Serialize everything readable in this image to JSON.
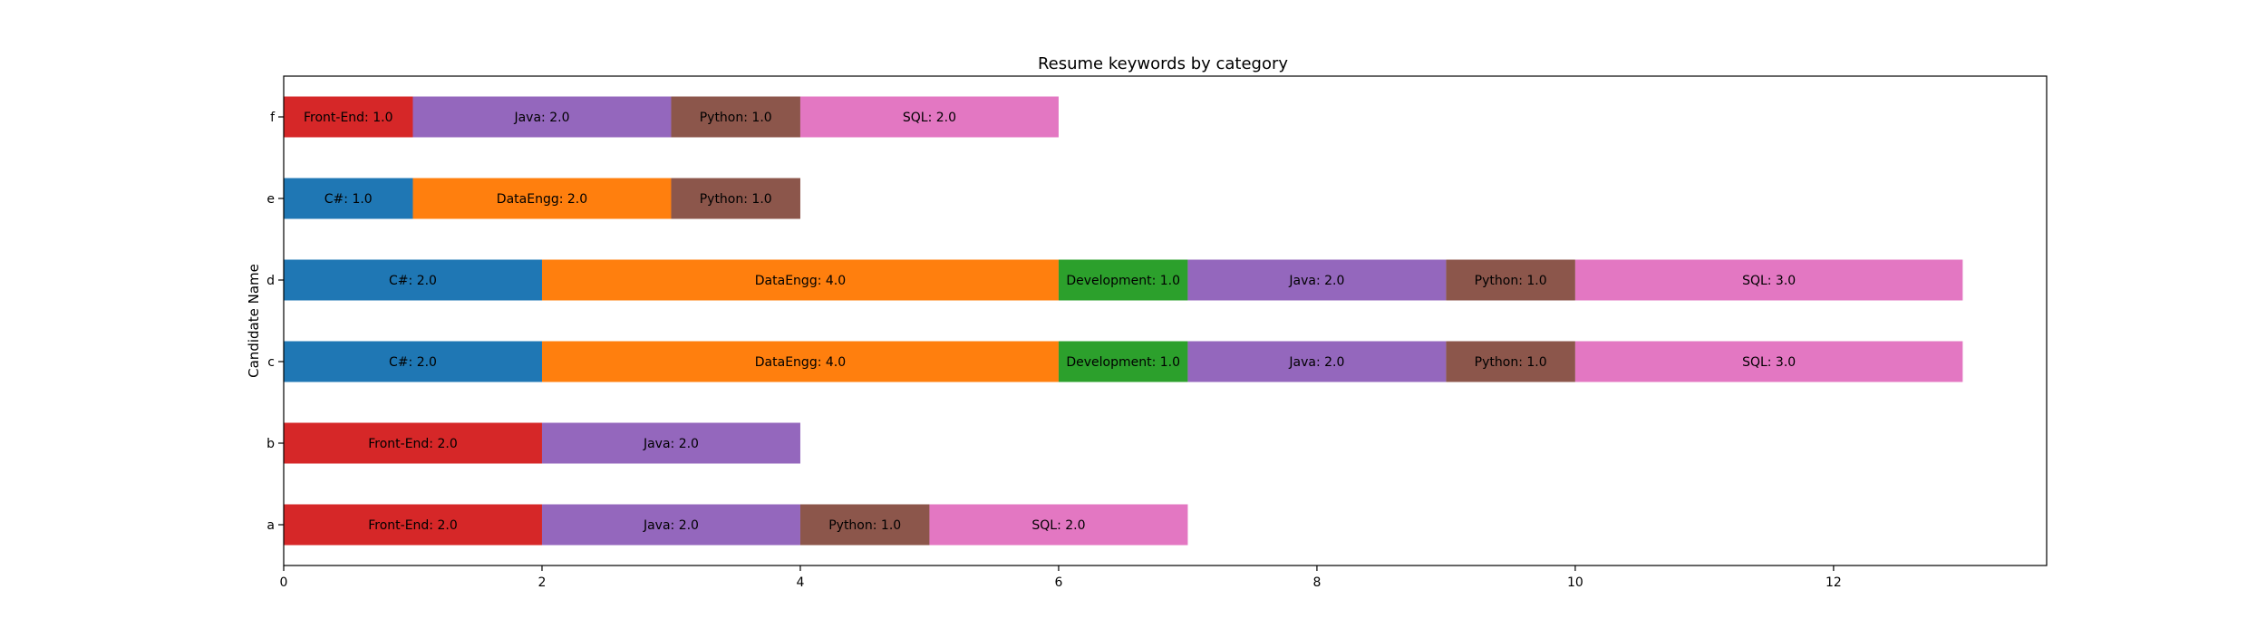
{
  "chart_data": {
    "type": "bar",
    "orientation": "horizontal",
    "stacked": true,
    "title": "Resume keywords by category",
    "xlabel": "",
    "ylabel": "Candidate Name",
    "categories": [
      "a",
      "b",
      "c",
      "d",
      "e",
      "f"
    ],
    "xlim": [
      0,
      13.65
    ],
    "xticks": [
      0,
      2,
      4,
      6,
      8,
      10,
      12
    ],
    "grid": false,
    "legend": "none",
    "series": [
      {
        "name": "C#",
        "color": "#1f77b4",
        "values": [
          0,
          0,
          2,
          2,
          1,
          0
        ]
      },
      {
        "name": "DataEngg",
        "color": "#ff7f0e",
        "values": [
          0,
          0,
          4,
          4,
          2,
          0
        ]
      },
      {
        "name": "Development",
        "color": "#2ca02c",
        "values": [
          0,
          0,
          1,
          1,
          0,
          0
        ]
      },
      {
        "name": "Front-End",
        "color": "#d62728",
        "values": [
          2,
          2,
          0,
          0,
          0,
          1
        ]
      },
      {
        "name": "Java",
        "color": "#9467bd",
        "values": [
          2,
          2,
          2,
          2,
          0,
          2
        ]
      },
      {
        "name": "Python",
        "color": "#8c564b",
        "values": [
          1,
          0,
          1,
          1,
          1,
          1
        ]
      },
      {
        "name": "SQL",
        "color": "#e377c2",
        "values": [
          2,
          0,
          3,
          3,
          0,
          2
        ]
      }
    ],
    "segment_label_format": "{name}: {value}"
  }
}
